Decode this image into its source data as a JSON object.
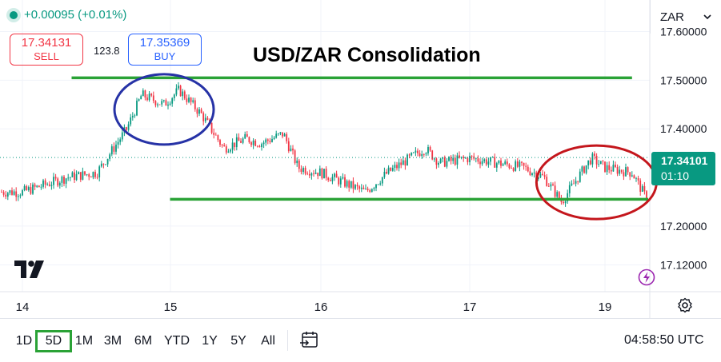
{
  "header": {
    "change_text": "+0.00095 (+0.01%)",
    "sell_price": "17.34131",
    "sell_label": "SELL",
    "spread": "123.8",
    "buy_price": "17.35369",
    "buy_label": "BUY",
    "currency": "ZAR"
  },
  "current_price": {
    "price": "17.34101",
    "countdown": "01:10"
  },
  "toolbar": {
    "ranges": [
      "1D",
      "5D",
      "1M",
      "3M",
      "6M",
      "YTD",
      "1Y",
      "5Y",
      "All"
    ],
    "active_range": "5D",
    "clock": "04:58:50 UTC"
  },
  "colors": {
    "up": "#089981",
    "down": "#f23645",
    "buy": "#2962ff",
    "support_resistance": "#2aa236",
    "annotation_blue": "#2632a6",
    "annotation_red": "#c4161c"
  },
  "chart_data": {
    "type": "candlestick",
    "title": "USD/ZAR Consolidation",
    "x_ticks": [
      "14",
      "15",
      "16",
      "17",
      "19"
    ],
    "y_ticks": [
      "17.60000",
      "17.50000",
      "17.40000",
      "17.20000",
      "17.12000"
    ],
    "ylim": [
      17.065,
      17.665
    ],
    "current_price": 17.34101,
    "resistance": 17.505,
    "support": 17.255,
    "path_points": [
      [
        0,
        17.27
      ],
      [
        0.3,
        17.3
      ],
      [
        0.5,
        17.31
      ],
      [
        0.7,
        17.4
      ],
      [
        0.8,
        17.47
      ],
      [
        0.95,
        17.45
      ],
      [
        1.05,
        17.48
      ],
      [
        1.2,
        17.43
      ],
      [
        1.35,
        17.36
      ],
      [
        1.5,
        17.38
      ],
      [
        1.6,
        17.37
      ],
      [
        1.75,
        17.39
      ],
      [
        1.85,
        17.32
      ],
      [
        2.0,
        17.31
      ],
      [
        2.15,
        17.29
      ],
      [
        2.3,
        17.27
      ],
      [
        2.45,
        17.31
      ],
      [
        2.6,
        17.34
      ],
      [
        2.7,
        17.36
      ],
      [
        2.8,
        17.33
      ],
      [
        3.0,
        17.34
      ],
      [
        3.2,
        17.33
      ],
      [
        3.4,
        17.32
      ],
      [
        3.55,
        17.3
      ],
      [
        3.68,
        17.25
      ],
      [
        3.8,
        17.3
      ],
      [
        3.9,
        17.34
      ],
      [
        4.0,
        17.32
      ],
      [
        4.2,
        17.31
      ],
      [
        4.3,
        17.26
      ],
      [
        4.45,
        17.3
      ],
      [
        4.6,
        17.32
      ],
      [
        4.7,
        17.38
      ],
      [
        4.78,
        17.43
      ],
      [
        4.88,
        17.48
      ],
      [
        4.98,
        17.45
      ],
      [
        5.05,
        17.41
      ],
      [
        5.15,
        17.39
      ],
      [
        5.3,
        17.4
      ],
      [
        5.45,
        17.36
      ],
      [
        5.6,
        17.35
      ],
      [
        5.8,
        17.37
      ],
      [
        5.95,
        17.34
      ],
      [
        6.1,
        17.34
      ]
    ],
    "annotations": [
      {
        "shape": "ellipse",
        "color": "blue",
        "center_x": 0.95,
        "center_y": 17.44
      },
      {
        "shape": "ellipse",
        "color": "red",
        "center_x": 3.85,
        "center_y": 17.29
      }
    ]
  }
}
